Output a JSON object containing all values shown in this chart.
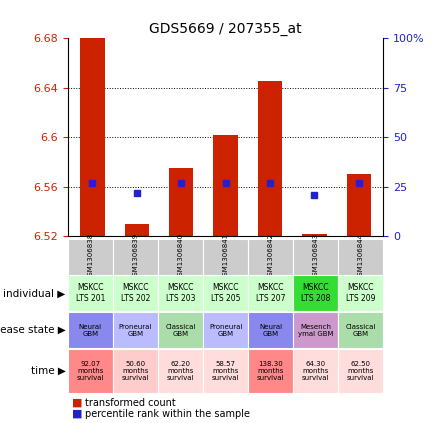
{
  "title": "GDS5669 / 207355_at",
  "samples": [
    "GSM1306838",
    "GSM1306839",
    "GSM1306840",
    "GSM1306841",
    "GSM1306842",
    "GSM1306843",
    "GSM1306844"
  ],
  "transformed_counts": [
    6.68,
    6.53,
    6.575,
    6.602,
    6.645,
    6.522,
    6.57
  ],
  "percentile_ranks": [
    27,
    22,
    27,
    27,
    27,
    21,
    27
  ],
  "ylim_left": [
    6.52,
    6.68
  ],
  "ylim_right": [
    0,
    100
  ],
  "yticks_left": [
    6.52,
    6.56,
    6.6,
    6.64,
    6.68
  ],
  "yticks_right": [
    0,
    25,
    50,
    75,
    100
  ],
  "individual_labels": [
    "MSKCC\nLTS 201",
    "MSKCC\nLTS 202",
    "MSKCC\nLTS 203",
    "MSKCC\nLTS 205",
    "MSKCC\nLTS 207",
    "MSKCC\nLTS 208",
    "MSKCC\nLTS 209"
  ],
  "individual_colors": [
    "#ccffcc",
    "#ccffcc",
    "#ccffcc",
    "#ccffcc",
    "#ccffcc",
    "#33dd33",
    "#ccffcc"
  ],
  "disease_labels": [
    "Neural\nGBM",
    "Proneural\nGBM",
    "Classical\nGBM",
    "Proneural\nGBM",
    "Neural\nGBM",
    "Mesench\nymal GBM",
    "Classical\nGBM"
  ],
  "disease_colors": [
    "#8888ee",
    "#bbbbff",
    "#aaddaa",
    "#bbbbff",
    "#8888ee",
    "#cc99cc",
    "#aaddaa"
  ],
  "time_labels": [
    "92.07\nmonths\nsurvival",
    "50.60\nmonths\nsurvival",
    "62.20\nmonths\nsurvival",
    "58.57\nmonths\nsurvival",
    "138.30\nmonths\nsurvival",
    "64.30\nmonths\nsurvival",
    "62.50\nmonths\nsurvival"
  ],
  "time_colors": [
    "#ff8888",
    "#ffcccc",
    "#ffdddd",
    "#ffdddd",
    "#ff8888",
    "#ffdddd",
    "#ffdddd"
  ],
  "bar_color": "#cc2200",
  "dot_color": "#2222cc",
  "legend_bar_label": "transformed count",
  "legend_dot_label": "percentile rank within the sample",
  "left_axis_color": "#cc2200",
  "right_axis_color": "#2222cc",
  "sample_row_color": "#cccccc"
}
